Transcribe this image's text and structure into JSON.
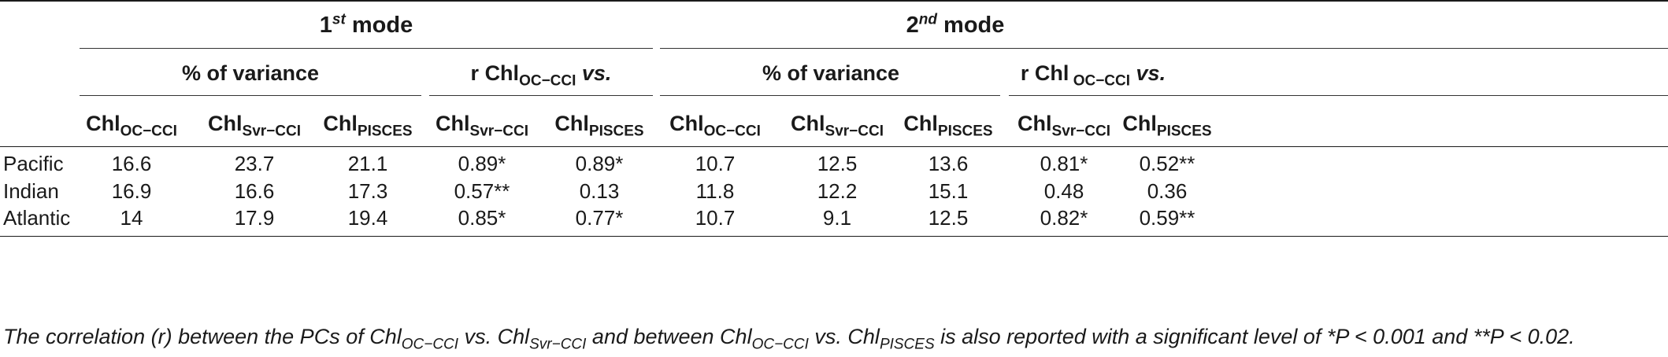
{
  "table": {
    "group_headers": [
      {
        "main": "1",
        "sup": "st",
        "rest": " mode"
      },
      {
        "main": "2",
        "sup": "nd",
        "rest": " mode"
      }
    ],
    "sub_headers": {
      "variance": "% of variance",
      "r_prefix": "r Chl",
      "r_sub_m1": "OC−CCI",
      "r_sub_m2": " OC−CCI",
      "r_vs": " vs."
    },
    "columns": [
      {
        "base": "Chl",
        "sub": "OC−CCI"
      },
      {
        "base": "Chl",
        "sub": "Svr−CCI"
      },
      {
        "base": "Chl",
        "sub": "PISCES"
      },
      {
        "base": "Chl",
        "sub": "Svr−CCI"
      },
      {
        "base": "Chl",
        "sub": "PISCES"
      },
      {
        "base": "Chl",
        "sub": "OC−CCI"
      },
      {
        "base": "Chl",
        "sub": "Svr−CCI"
      },
      {
        "base": "Chl",
        "sub": "PISCES"
      },
      {
        "base": "Chl",
        "sub": "Svr−CCI"
      },
      {
        "base": "Chl",
        "sub": "PISCES"
      }
    ],
    "rows": [
      {
        "label": "Pacific",
        "values": [
          "16.6",
          "23.7",
          "21.1",
          "0.89*",
          "0.89*",
          "10.7",
          "12.5",
          "13.6",
          "0.81*",
          "0.52**"
        ]
      },
      {
        "label": "Indian",
        "values": [
          "16.9",
          "16.6",
          "17.3",
          "0.57**",
          "0.13",
          "11.8",
          "12.2",
          "15.1",
          "0.48",
          "0.36"
        ]
      },
      {
        "label": "Atlantic",
        "values": [
          "14",
          "17.9",
          "19.4",
          "0.85*",
          "0.77*",
          "10.7",
          "9.1",
          "12.5",
          "0.82*",
          "0.59**"
        ]
      }
    ]
  },
  "caption": {
    "p1": "The correlation (r) between the PCs of Chl",
    "s1": "OC−CCI",
    "p2": " vs. Chl",
    "s2": "Svr−CCI",
    "p3": " and between Chl",
    "s3": "OC−CCI",
    "p4": " vs. Chl",
    "s4": "PISCES",
    "p5": " is also reported with a significant level of *P < 0.001 and **P < 0.02."
  }
}
